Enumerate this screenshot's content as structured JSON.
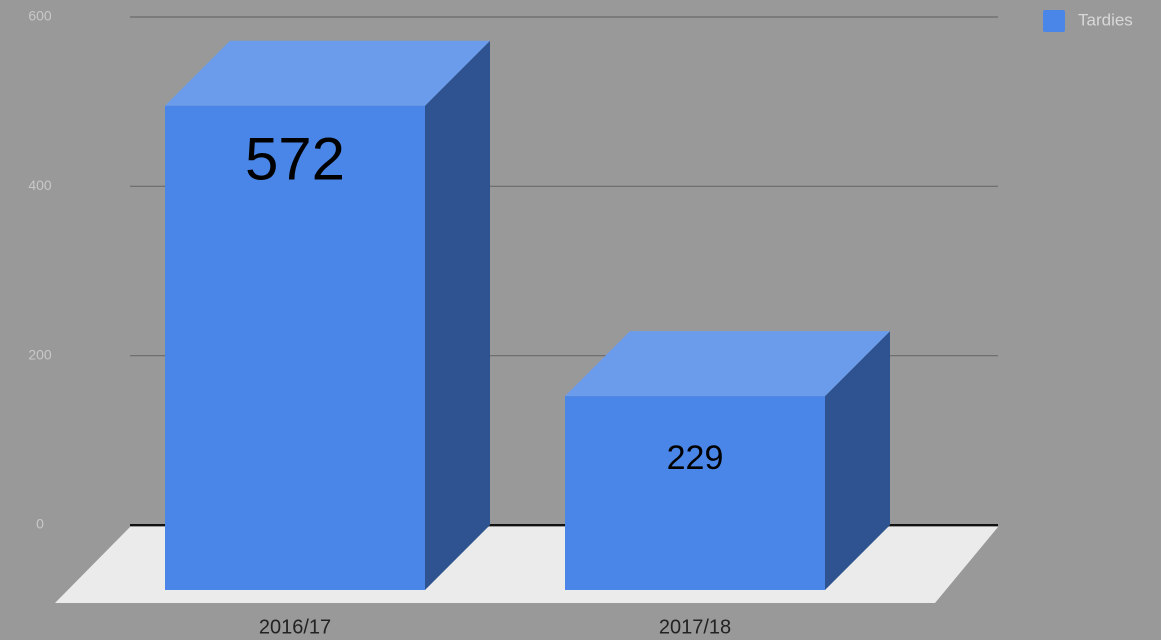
{
  "chart_data": {
    "type": "bar3d",
    "categories": [
      "2016/17",
      "2017/18"
    ],
    "series": [
      {
        "name": "Tardies",
        "color": "#4a86e8",
        "values": [
          572,
          229
        ]
      }
    ],
    "ylim": [
      0,
      600
    ],
    "yticks": [
      0,
      200,
      400,
      600
    ],
    "grid": true,
    "legend": "top-right"
  }
}
